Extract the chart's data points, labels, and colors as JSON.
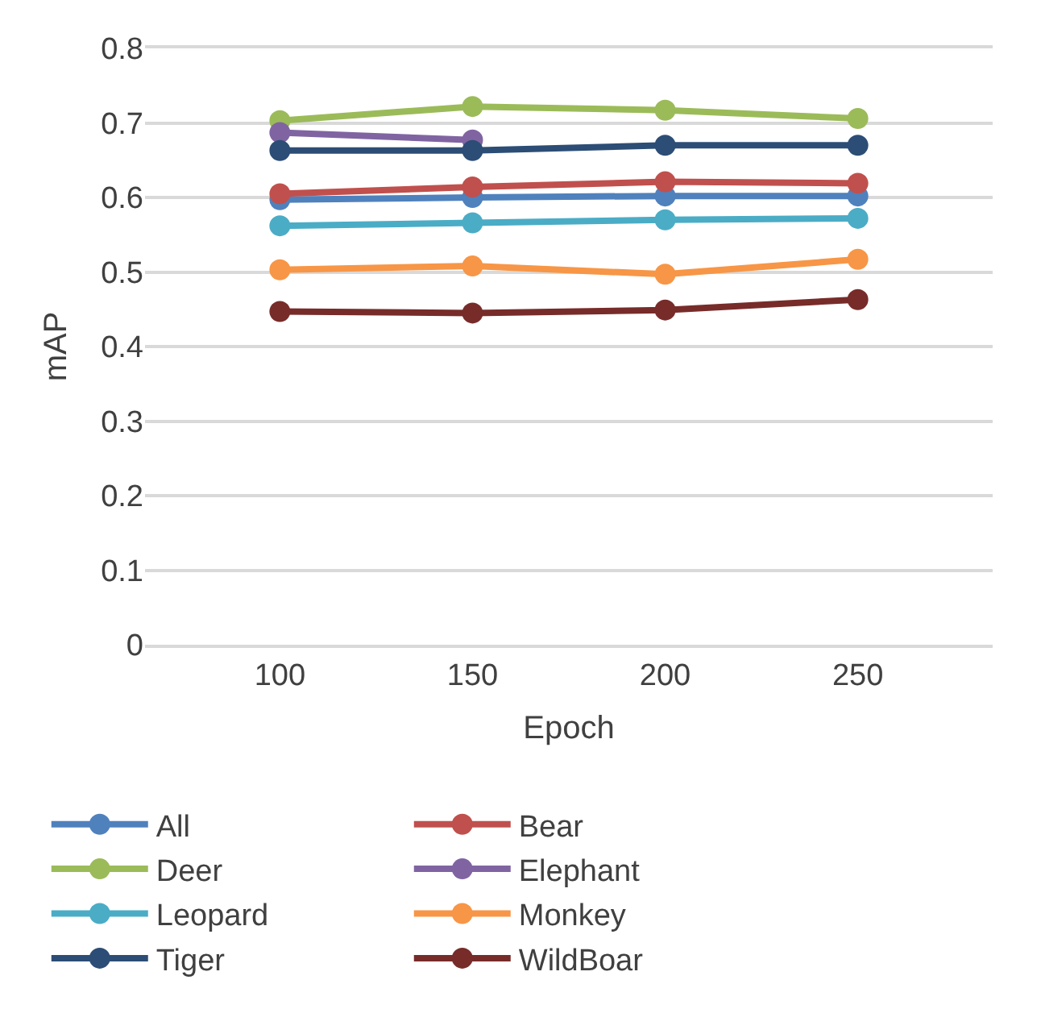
{
  "chart_data": {
    "type": "line",
    "xlabel": "Epoch",
    "ylabel": "mAP",
    "categories": [
      "100",
      "150",
      "200",
      "250"
    ],
    "ylim": [
      0,
      0.8
    ],
    "yticks": [
      {
        "value": 0,
        "label": "0"
      },
      0.1,
      0.2,
      0.3,
      0.4,
      0.5,
      0.6,
      0.7,
      0.8
    ],
    "grid": "y",
    "legend": "bottom",
    "marker": "circle",
    "line_style": "solid",
    "series": [
      {
        "name": "All",
        "color": "#4f81bd",
        "values": [
          0.597,
          0.6,
          0.602,
          0.602
        ]
      },
      {
        "name": "Bear",
        "color": "#c0504d",
        "values": [
          0.605,
          0.614,
          0.621,
          0.619
        ]
      },
      {
        "name": "Deer",
        "color": "#9bbb59",
        "values": [
          0.703,
          0.722,
          0.717,
          0.706
        ]
      },
      {
        "name": "Elephant",
        "color": "#8064a2",
        "values": [
          0.687,
          0.677,
          null,
          null
        ]
      },
      {
        "name": "Leopard",
        "color": "#4bacc6",
        "values": [
          0.562,
          0.566,
          0.57,
          0.572
        ]
      },
      {
        "name": "Monkey",
        "color": "#f79646",
        "values": [
          0.503,
          0.508,
          0.497,
          0.517
        ]
      },
      {
        "name": "Tiger",
        "color": "#2c4d75",
        "values": [
          0.663,
          0.663,
          0.67,
          0.67
        ]
      },
      {
        "name": "WildBoar",
        "color": "#772c2a",
        "values": [
          0.447,
          0.445,
          0.449,
          0.463
        ]
      }
    ]
  }
}
